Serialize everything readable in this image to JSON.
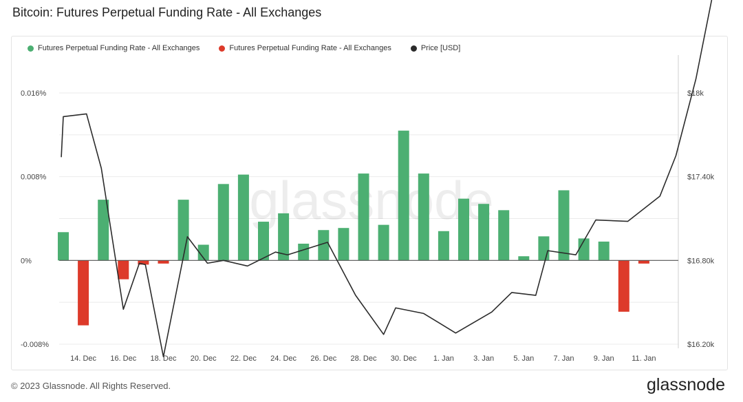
{
  "title": "Bitcoin: Futures Perpetual Funding Rate - All Exchanges",
  "footer": "© 2023 Glassnode. All Rights Reserved.",
  "brand": "glassnode",
  "watermark": "glassnode",
  "colors": {
    "positive": "#4caf72",
    "negative": "#dd3a2a",
    "price": "#2b2b2b",
    "grid": "#ebebeb",
    "zero_line": "#555555"
  },
  "chart_data": {
    "type": "bar",
    "legend": [
      {
        "label": "Futures Perpetual Funding Rate - All Exchanges",
        "color": "#4caf72"
      },
      {
        "label": "Futures Perpetual Funding Rate - All Exchanges",
        "color": "#dd3a2a"
      },
      {
        "label": "Price [USD]",
        "color": "#2b2b2b"
      }
    ],
    "legend_position": "top-left",
    "grid": true,
    "dates": [
      "Dec 13",
      "Dec 14",
      "Dec 15",
      "Dec 16",
      "Dec 17",
      "Dec 18",
      "Dec 19",
      "Dec 20",
      "Dec 21",
      "Dec 22",
      "Dec 23",
      "Dec 24",
      "Dec 25",
      "Dec 26",
      "Dec 27",
      "Dec 28",
      "Dec 29",
      "Dec 30",
      "Dec 31",
      "Jan 1",
      "Jan 2",
      "Jan 3",
      "Jan 4",
      "Jan 5",
      "Jan 6",
      "Jan 7",
      "Jan 8",
      "Jan 9",
      "Jan 10",
      "Jan 11",
      "Jan 12"
    ],
    "x_tick_labels": [
      "14. Dec",
      "16. Dec",
      "18. Dec",
      "20. Dec",
      "22. Dec",
      "24. Dec",
      "26. Dec",
      "28. Dec",
      "30. Dec",
      "1. Jan",
      "3. Jan",
      "5. Jan",
      "7. Jan",
      "9. Jan",
      "11. Jan"
    ],
    "x_tick_indices": [
      1,
      3,
      5,
      7,
      9,
      11,
      13,
      15,
      17,
      19,
      21,
      23,
      25,
      27,
      29
    ],
    "funding_rate": [
      0.0027,
      -0.0062,
      0.0058,
      -0.0018,
      -0.0004,
      -0.0003,
      0.0058,
      0.0015,
      0.0073,
      0.0082,
      0.0037,
      0.0045,
      0.0016,
      0.0029,
      0.0031,
      0.0083,
      0.0034,
      0.0124,
      0.0083,
      0.0028,
      0.0059,
      0.0054,
      0.0048,
      0.0004,
      0.0023,
      0.0067,
      0.0021,
      0.0018,
      -0.0049,
      -0.0003,
      0
    ],
    "funding_rate_last_index": 29,
    "price": [
      17540,
      17830,
      17850,
      17460,
      16450,
      16780,
      16770,
      16110,
      16970,
      16780,
      16800,
      16760,
      16860,
      16840,
      16930,
      16550,
      16270,
      16460,
      16420,
      16280,
      16430,
      16570,
      16550,
      16870,
      16840,
      17090,
      17080,
      17260,
      17550,
      18100,
      18820
    ],
    "price_x_offsets": [
      -0.05,
      0,
      0.58,
      0.95,
      1.5,
      1.9,
      2.05,
      2.5,
      3.1,
      3.6,
      4.0,
      4.6,
      5.3,
      5.6,
      6.6,
      7.3,
      8.0,
      8.3,
      9.0,
      9.8,
      10.7,
      11.2,
      11.8,
      12.1,
      12.8,
      13.3,
      14.1,
      14.9,
      15.3,
      15.8,
      16.3
    ],
    "y_left": {
      "min": -0.008,
      "max": 0.016,
      "ticks": [
        -0.008,
        0,
        0.008,
        0.016
      ],
      "tick_labels": [
        "-0.008%",
        "0%",
        "0.008%",
        "0.016%"
      ]
    },
    "y_right": {
      "min": 16200,
      "max": 18000,
      "ticks": [
        16200,
        16800,
        17400,
        18000
      ],
      "tick_labels": [
        "$16.20k",
        "$16.80k",
        "$17.40k",
        "$18k"
      ]
    }
  }
}
